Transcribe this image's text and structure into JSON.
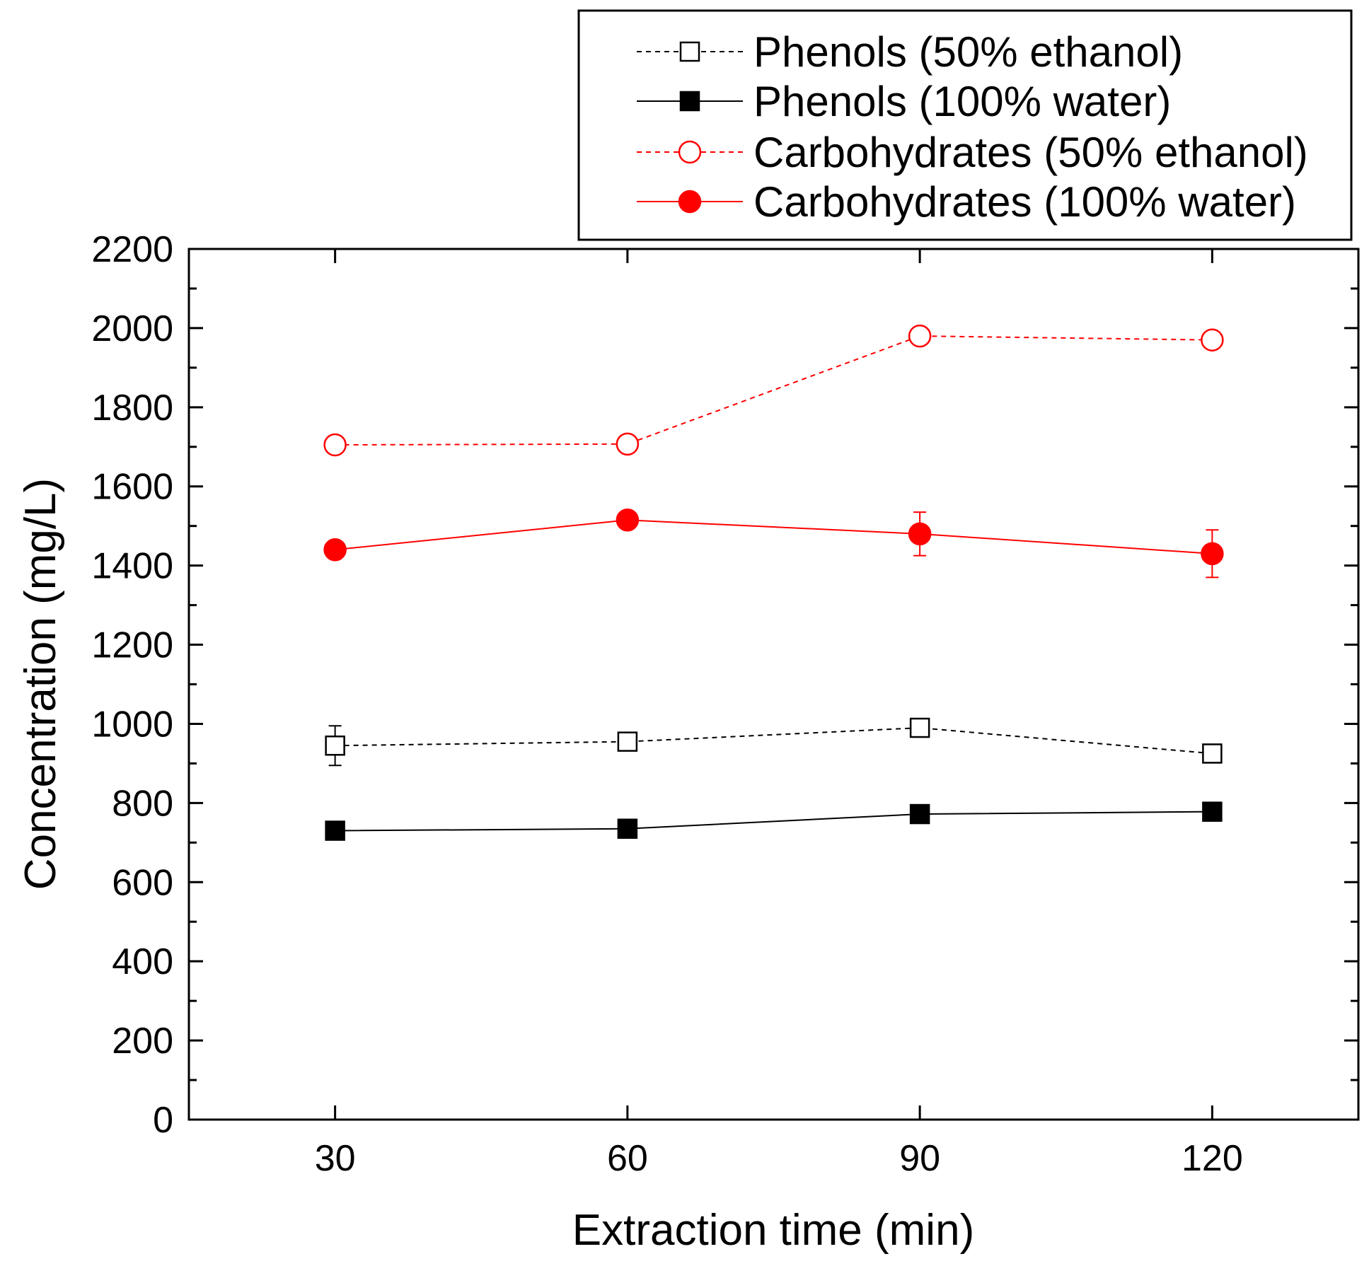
{
  "chart_data": {
    "type": "line",
    "title": "",
    "xlabel": "Extraction time (min)",
    "ylabel": "Concentration (mg/L)",
    "x": [
      30,
      60,
      90,
      120
    ],
    "xlim": [
      15,
      135
    ],
    "ylim": [
      0,
      2200
    ],
    "x_ticks": [
      30,
      60,
      90,
      120
    ],
    "x_tick_labels": [
      "30",
      "60",
      "90",
      "120"
    ],
    "y_ticks": [
      0,
      200,
      400,
      600,
      800,
      1000,
      1200,
      1400,
      1600,
      1800,
      2000,
      2200
    ],
    "y_tick_labels": [
      "0",
      "200",
      "400",
      "600",
      "800",
      "1000",
      "1200",
      "1400",
      "1600",
      "1800",
      "2000",
      "2200"
    ],
    "grid": false,
    "legend_position": "top-right, above plot",
    "series": [
      {
        "name": "Phenols (50% ethanol)",
        "values": [
          945,
          955,
          990,
          925
        ],
        "errors": [
          50,
          15,
          18,
          15
        ],
        "color": "#000000",
        "marker": "square-open",
        "line": "dashed"
      },
      {
        "name": "Phenols (100% water)",
        "values": [
          730,
          735,
          772,
          778
        ],
        "errors": [
          8,
          8,
          8,
          8
        ],
        "color": "#000000",
        "marker": "square-filled",
        "line": "solid"
      },
      {
        "name": "Carbohydrates (50% ethanol)",
        "values": [
          1705,
          1707,
          1980,
          1970
        ],
        "errors": [
          22,
          22,
          12,
          12
        ],
        "color": "#ff0000",
        "marker": "circle-open",
        "line": "dashed"
      },
      {
        "name": "Carbohydrates (100% water)",
        "values": [
          1440,
          1515,
          1480,
          1430
        ],
        "errors": [
          8,
          12,
          55,
          60
        ],
        "color": "#ff0000",
        "marker": "circle-filled",
        "line": "solid"
      }
    ]
  }
}
